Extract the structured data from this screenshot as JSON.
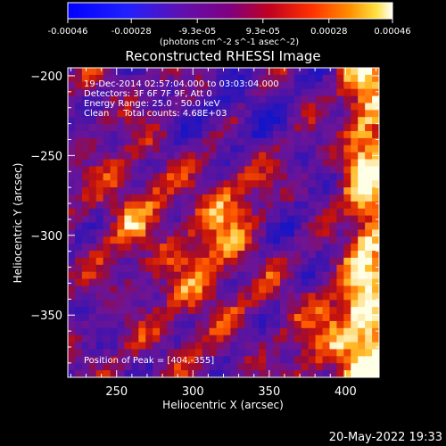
{
  "colorbar": {
    "tick_labels": [
      "-0.00046",
      "-0.00028",
      "-9.3e-05",
      "9.3e-05",
      "0.00028",
      "0.00046"
    ],
    "tick_values": [
      -0.00046,
      -0.00028,
      -9.3e-05,
      9.3e-05,
      0.00028,
      0.00046
    ],
    "range": [
      -0.00046,
      0.00046
    ]
  },
  "chart_data": {
    "type": "heatmap",
    "title": "Reconstructed RHESSI Image",
    "xlabel": "Heliocentric X (arcsec)",
    "ylabel": "Heliocentric Y (arcsec)",
    "xlim": [
      218,
      422
    ],
    "ylim": [
      -389,
      -195
    ],
    "xticks": [
      250,
      300,
      350,
      400
    ],
    "yticks": [
      -200,
      -250,
      -300,
      -350
    ],
    "xtick_labels": [
      "250",
      "300",
      "350",
      "400"
    ],
    "ytick_labels": [
      "−200",
      "−250",
      "−300",
      "−350"
    ],
    "colorbar_unit": "(photons cm^-2 s^-1 asec^-2)",
    "annotations": {
      "time": "19-Dec-2014 02:57:04.000 to 03:03:04.000",
      "detectors": "Detectors: 3F 6F 7F 9F, Att 0",
      "energy": "Energy Range: 25.0 - 50.0 keV",
      "clean": "Clean     Total counts: 4.68E+03",
      "peak": "Position of Peak = [404,-355]"
    },
    "peak_position": [
      404,
      -355
    ],
    "colors": {
      "background": "#000000",
      "low": "#1010d0",
      "mid_low": "#5020a0",
      "mid": "#c01010",
      "mid_high": "#ff7010",
      "high": "#ffffff"
    }
  },
  "footer": {
    "timestamp": "20-May-2022 19:33"
  }
}
